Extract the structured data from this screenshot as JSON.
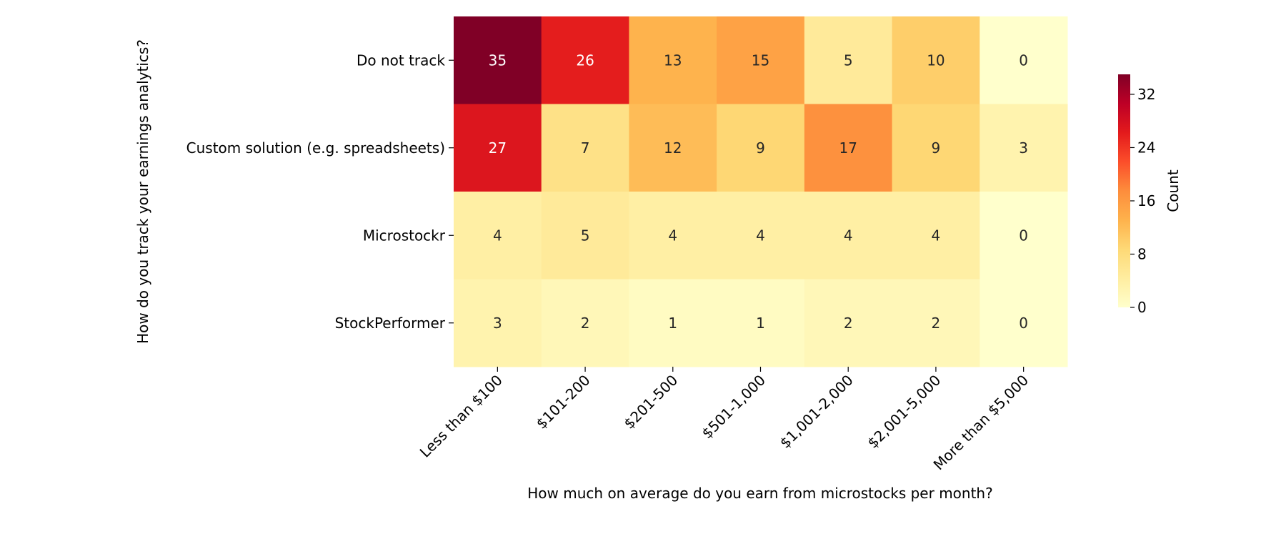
{
  "chart_data": {
    "type": "heatmap",
    "title": "",
    "xlabel": "How much on average do you earn from microstocks per month?",
    "ylabel": "How do you track your earnings analytics?",
    "x_categories": [
      "Less than $100",
      "$101-200",
      "$201-500",
      "$501-1,000",
      "$1,001-2,000",
      "$2,001-5,000",
      "More than $5,000"
    ],
    "y_categories": [
      "Do not track",
      "Custom solution (e.g. spreadsheets)",
      "Microstockr",
      "StockPerformer"
    ],
    "values": [
      [
        35,
        26,
        13,
        15,
        5,
        10,
        0
      ],
      [
        27,
        7,
        12,
        9,
        17,
        9,
        3
      ],
      [
        4,
        5,
        4,
        4,
        4,
        4,
        0
      ],
      [
        3,
        2,
        1,
        1,
        2,
        2,
        0
      ]
    ],
    "annotated": true,
    "colormap": "YlOrRd",
    "colormap_stops": [
      "#ffffcc",
      "#ffeda0",
      "#fed976",
      "#feb24c",
      "#fd8d3c",
      "#fc4e2a",
      "#e31a1c",
      "#bd0026",
      "#800026"
    ],
    "vmin": 0,
    "vmax": 35,
    "colorbar": {
      "label": "Count",
      "ticks": [
        "0",
        "8",
        "16",
        "24",
        "32"
      ],
      "tick_values": [
        0,
        8,
        16,
        24,
        32
      ],
      "placement": "right"
    },
    "grid": false
  }
}
